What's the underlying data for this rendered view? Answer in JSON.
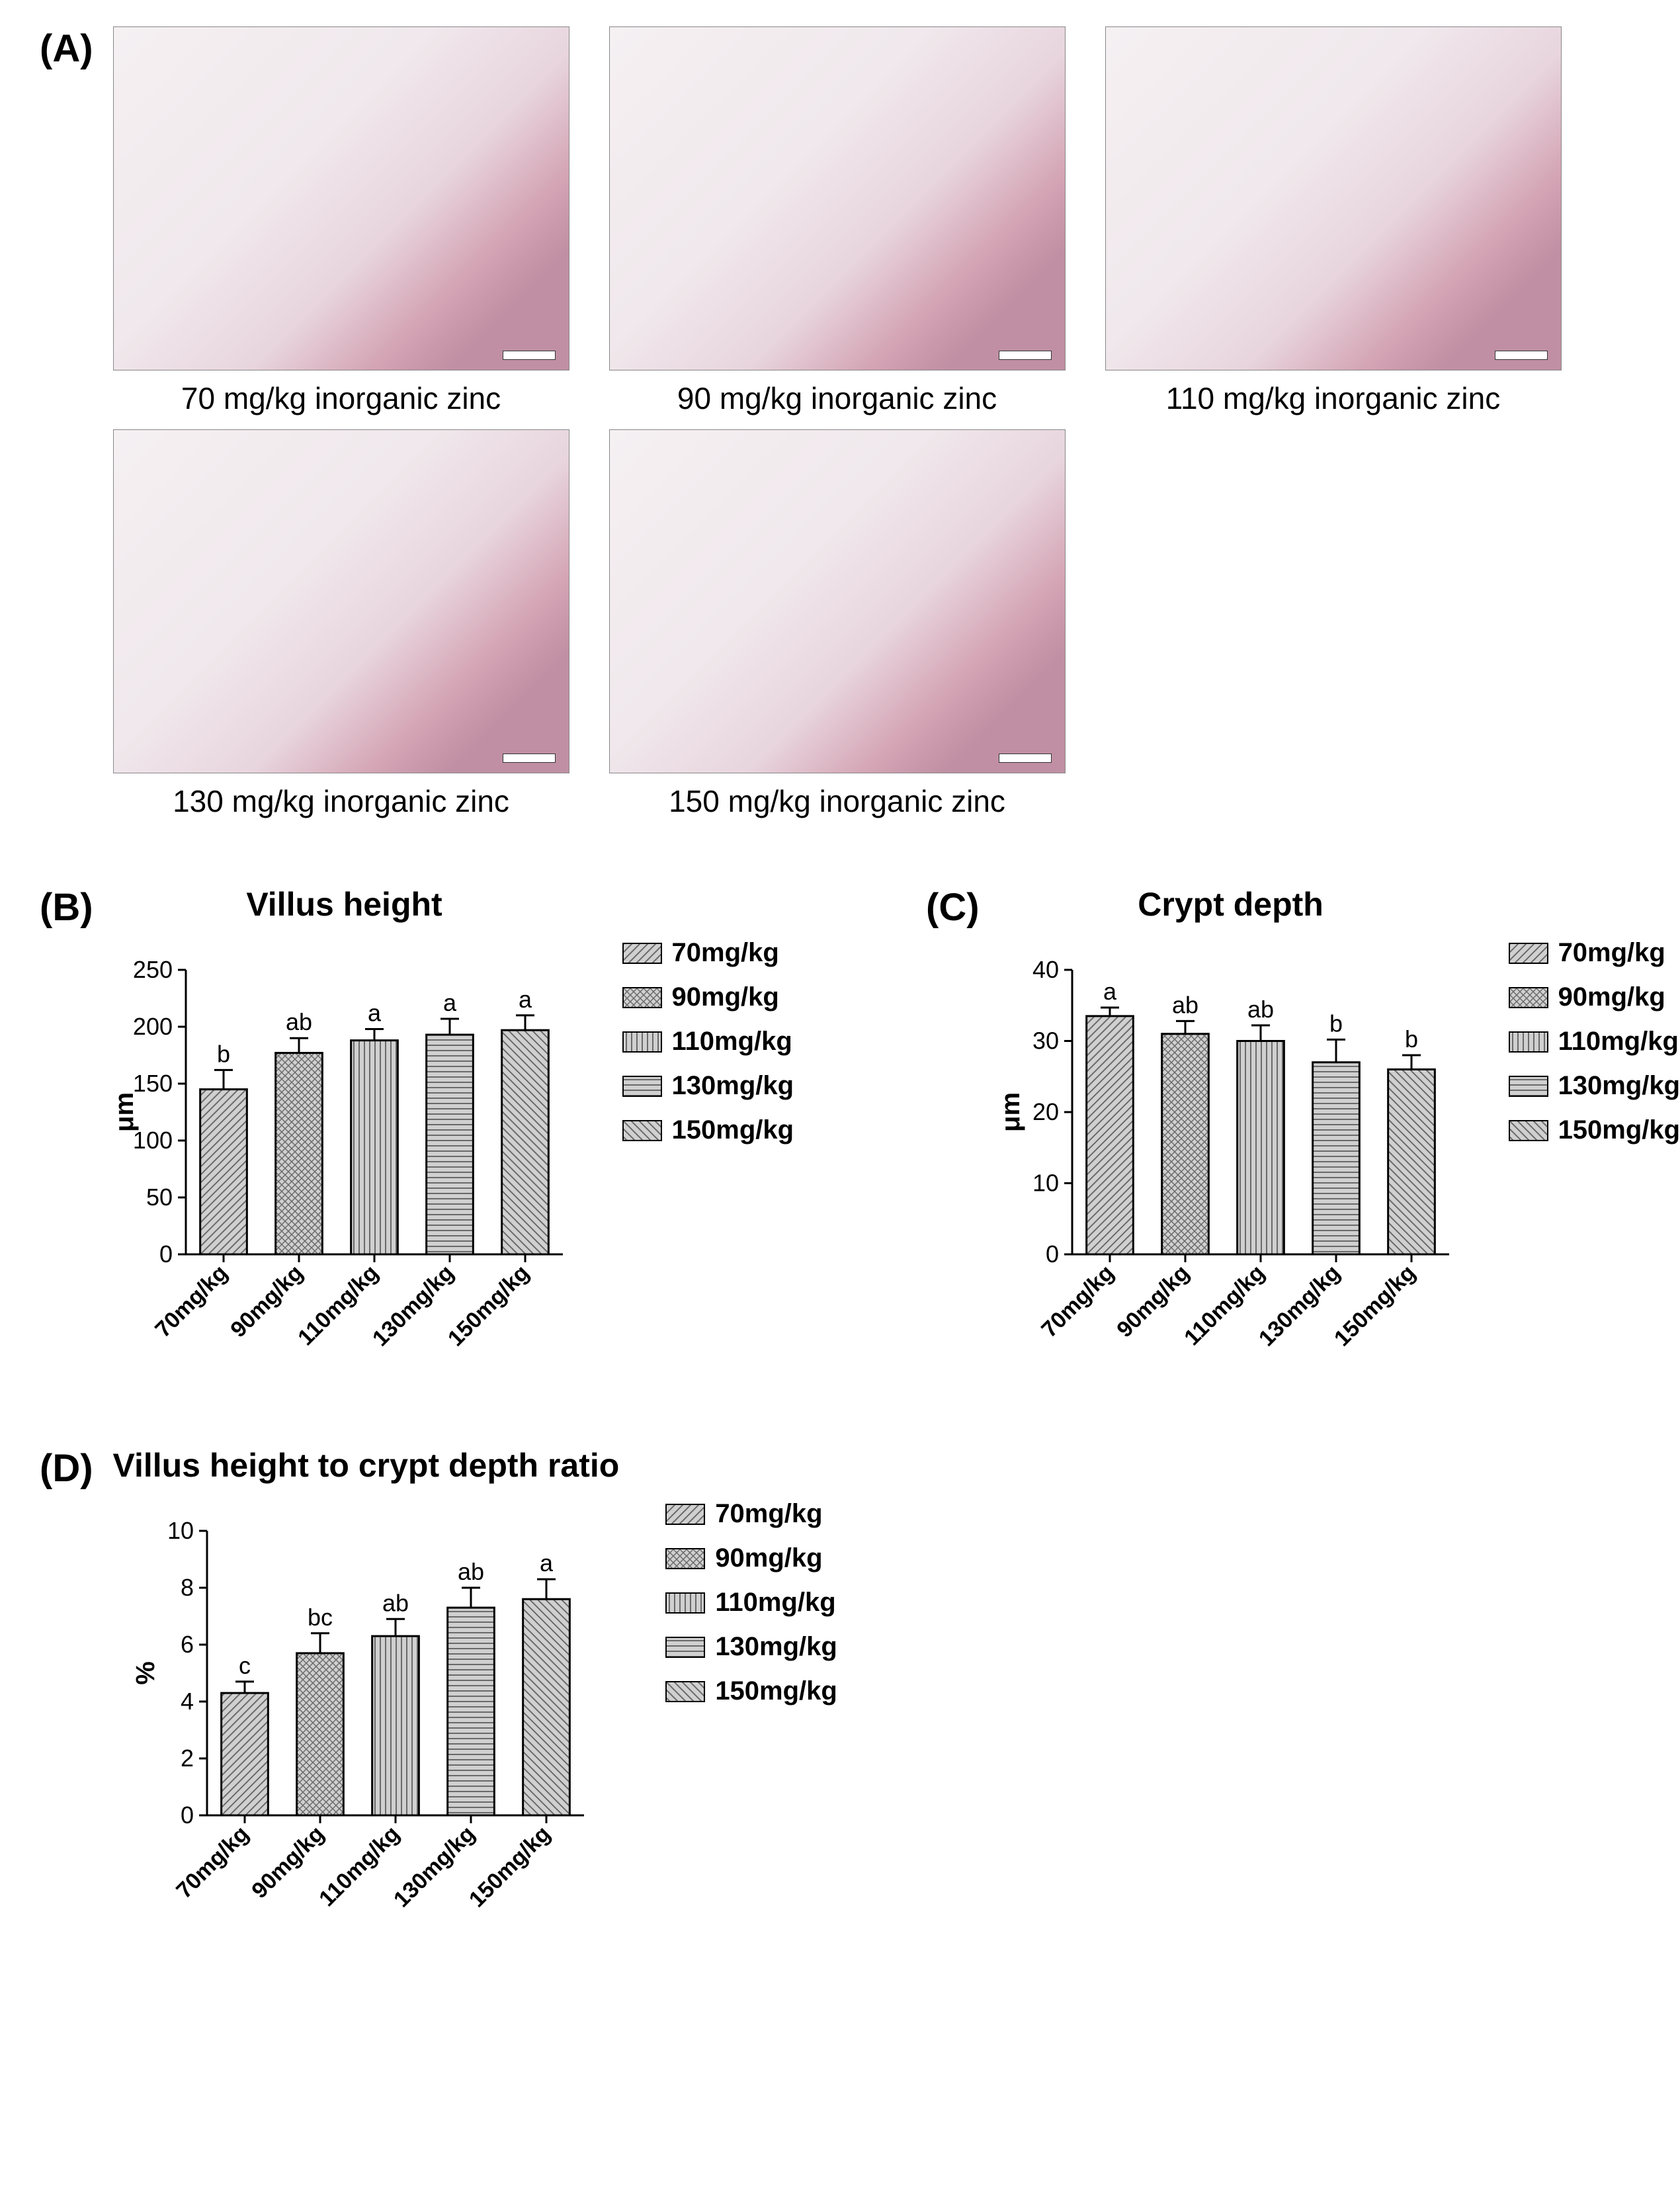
{
  "panels": {
    "A": {
      "label": "(A)"
    },
    "B": {
      "label": "(B)",
      "title": "Villus height"
    },
    "C": {
      "label": "(C)",
      "title": "Crypt depth"
    },
    "D": {
      "label": "(D)",
      "title": "Villus height to crypt depth ratio"
    }
  },
  "histology": {
    "captions": [
      "70 mg/kg inorganic zinc",
      "90 mg/kg inorganic zinc",
      "110 mg/kg inorganic zinc",
      "130 mg/kg inorganic zinc",
      "150 mg/kg inorganic zinc"
    ]
  },
  "legend": {
    "items": [
      {
        "label": "70mg/kg",
        "pattern": "diag"
      },
      {
        "label": "90mg/kg",
        "pattern": "cross"
      },
      {
        "label": "110mg/kg",
        "pattern": "vert"
      },
      {
        "label": "130mg/kg",
        "pattern": "horiz"
      },
      {
        "label": "150mg/kg",
        "pattern": "diag2"
      }
    ]
  },
  "chartB": {
    "type": "bar",
    "ylabel": "μm",
    "ylim": [
      0,
      250
    ],
    "ytick_step": 50,
    "categories": [
      "70mg/kg",
      "90mg/kg",
      "110mg/kg",
      "130mg/kg",
      "150mg/kg"
    ],
    "values": [
      145,
      177,
      188,
      193,
      197
    ],
    "errors": [
      17,
      13,
      10,
      14,
      13
    ],
    "sig": [
      "b",
      "ab",
      "a",
      "a",
      "a"
    ],
    "bar_fill": "#d0d0d0",
    "bar_border": "#000000",
    "bar_width": 0.62
  },
  "chartC": {
    "type": "bar",
    "ylabel": "μm",
    "ylim": [
      0,
      40
    ],
    "ytick_step": 10,
    "categories": [
      "70mg/kg",
      "90mg/kg",
      "110mg/kg",
      "130mg/kg",
      "150mg/kg"
    ],
    "values": [
      33.5,
      31,
      30,
      27,
      26
    ],
    "errors": [
      1.2,
      1.8,
      2.2,
      3.2,
      2.0
    ],
    "sig": [
      "a",
      "ab",
      "ab",
      "b",
      "b"
    ],
    "bar_fill": "#d0d0d0",
    "bar_border": "#000000",
    "bar_width": 0.62
  },
  "chartD": {
    "type": "bar",
    "ylabel": "%",
    "ylim": [
      0,
      10
    ],
    "ytick_step": 2,
    "categories": [
      "70mg/kg",
      "90mg/kg",
      "110mg/kg",
      "130mg/kg",
      "150mg/kg"
    ],
    "values": [
      4.3,
      5.7,
      6.3,
      7.3,
      7.6
    ],
    "errors": [
      0.4,
      0.7,
      0.6,
      0.7,
      0.7
    ],
    "sig": [
      "c",
      "bc",
      "ab",
      "ab",
      "a"
    ],
    "bar_fill": "#d0d0d0",
    "bar_border": "#000000",
    "bar_width": 0.62
  },
  "colors": {
    "axis": "#000000",
    "text": "#000000",
    "pattern": "#7a7a7a"
  }
}
